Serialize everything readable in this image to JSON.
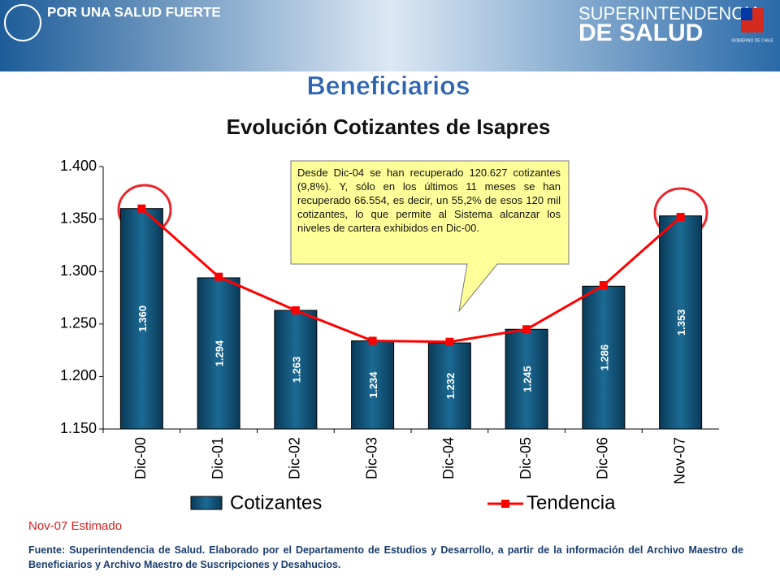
{
  "header": {
    "slogan": "POR UNA SALUD FUERTE",
    "org_line1": "SUPERINTENDENCIA",
    "org_line2": "DE SALUD",
    "gov": "GOBIERNO DE CHILE"
  },
  "slide_title": "Beneficiarios",
  "chart_data": {
    "type": "bar",
    "title": "Evolución Cotizantes de Isapres",
    "categories": [
      "Dic-00",
      "Dic-01",
      "Dic-02",
      "Dic-03",
      "Dic-04",
      "Dic-05",
      "Dic-06",
      "Nov-07"
    ],
    "series": [
      {
        "name": "Cotizantes",
        "type": "bar",
        "color": "#0f4c6e",
        "values": [
          1360,
          1294,
          1263,
          1234,
          1232,
          1245,
          1286,
          1353
        ],
        "value_labels": [
          "1.360",
          "1.294",
          "1.263",
          "1.234",
          "1.232",
          "1.245",
          "1.286",
          "1.353"
        ]
      },
      {
        "name": "Tendencia",
        "type": "line",
        "color": "#ff0000",
        "values": [
          1360,
          1295,
          1263,
          1234,
          1233,
          1245,
          1287,
          1352
        ]
      }
    ],
    "ylim": [
      1150,
      1400
    ],
    "yticks": [
      {
        "value": 1150,
        "label": "1.150"
      },
      {
        "value": 1200,
        "label": "1.200"
      },
      {
        "value": 1250,
        "label": "1.250"
      },
      {
        "value": 1300,
        "label": "1.300"
      },
      {
        "value": 1350,
        "label": "1.350"
      },
      {
        "value": 1400,
        "label": "1.400"
      }
    ],
    "grid": false,
    "legend": "bottom",
    "annotation": "Desde Dic-04 se han recuperado 120.627 cotizantes (9,8%). Y, sólo en los últimos 11 meses se han recuperado 66.554, es decir, un 55,2% de esos 120 mil cotizantes, lo que permite al Sistema alcanzar los niveles de cartera exhibidos en Dic-00.",
    "note": "Nov-07 Estimado"
  },
  "footer": "Fuente:  Superintendencia de Salud. Elaborado por el Departamento de Estudios y Desarrollo, a partir de la información del Archivo Maestro de Beneficiarios y Archivo Maestro de Suscripciones y Desahucios."
}
